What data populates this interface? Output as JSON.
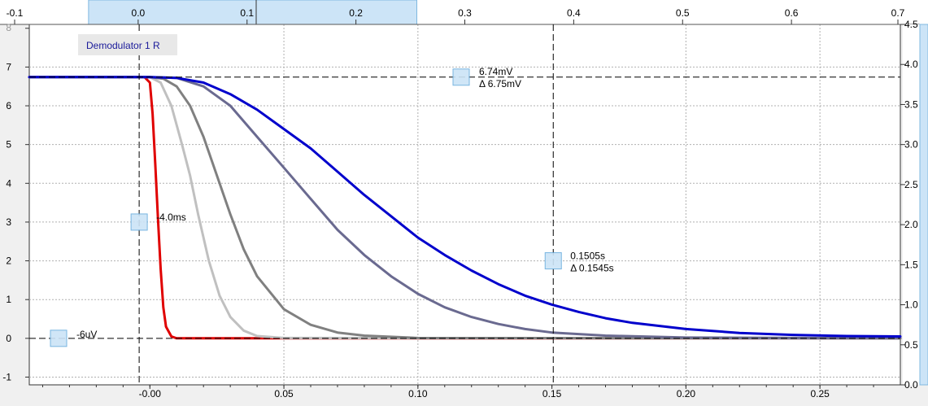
{
  "chart_data": {
    "type": "line",
    "title": "",
    "legend_label": "Demodulator 1 R",
    "top_axis": {
      "range": [
        -0.1,
        0.7
      ],
      "ticks": [
        "-0.1",
        "0.0",
        "0.1",
        "0.2",
        "0.3",
        "0.4",
        "0.5",
        "0.6",
        "0.7"
      ],
      "highlight_range": [
        0.0,
        0.3
      ]
    },
    "left_axis": {
      "range": [
        -1.2,
        8.1
      ],
      "ticks": [
        "-1",
        "0",
        "1",
        "2",
        "3",
        "4",
        "5",
        "6",
        "7",
        "8"
      ]
    },
    "right_axis": {
      "range": [
        0.0,
        4.5
      ],
      "ticks": [
        "0.0",
        "0.5",
        "1.0",
        "1.5",
        "2.0",
        "2.5",
        "3.0",
        "3.5",
        "4.0",
        "4.5"
      ]
    },
    "bottom_axis": {
      "range": [
        -0.045,
        0.28
      ],
      "ticks": [
        "-0.00",
        "0.05",
        "0.10",
        "0.15",
        "0.20",
        "0.25"
      ]
    },
    "grid": true,
    "series": [
      {
        "color": "#e00000",
        "x": [
          -0.045,
          -0.002,
          0.0,
          0.001,
          0.002,
          0.003,
          0.004,
          0.005,
          0.006,
          0.008,
          0.01,
          0.02,
          0.28
        ],
        "y": [
          6.74,
          6.74,
          6.6,
          5.8,
          4.5,
          3.1,
          1.8,
          0.8,
          0.3,
          0.05,
          0.0,
          0.0,
          0.0
        ]
      },
      {
        "color": "#c0c0c0",
        "x": [
          -0.045,
          0.0,
          0.004,
          0.008,
          0.012,
          0.015,
          0.018,
          0.022,
          0.026,
          0.03,
          0.035,
          0.04,
          0.05,
          0.28
        ],
        "y": [
          6.74,
          6.74,
          6.6,
          6.0,
          5.0,
          4.2,
          3.2,
          2.0,
          1.1,
          0.55,
          0.2,
          0.06,
          0.01,
          0.0
        ]
      },
      {
        "color": "#808080",
        "x": [
          -0.045,
          0.0,
          0.005,
          0.01,
          0.015,
          0.02,
          0.025,
          0.03,
          0.035,
          0.04,
          0.05,
          0.06,
          0.07,
          0.08,
          0.1,
          0.28
        ],
        "y": [
          6.74,
          6.74,
          6.7,
          6.5,
          6.0,
          5.2,
          4.2,
          3.2,
          2.3,
          1.6,
          0.75,
          0.35,
          0.15,
          0.07,
          0.01,
          0.0
        ]
      },
      {
        "color": "#6a6a90",
        "x": [
          -0.045,
          0.0,
          0.01,
          0.02,
          0.03,
          0.04,
          0.05,
          0.06,
          0.07,
          0.08,
          0.09,
          0.1,
          0.11,
          0.12,
          0.13,
          0.14,
          0.15,
          0.17,
          0.2,
          0.28
        ],
        "y": [
          6.74,
          6.74,
          6.72,
          6.5,
          6.0,
          5.2,
          4.4,
          3.6,
          2.8,
          2.15,
          1.6,
          1.15,
          0.8,
          0.55,
          0.37,
          0.24,
          0.15,
          0.07,
          0.02,
          0.0
        ]
      },
      {
        "color": "#0000cc",
        "x": [
          -0.045,
          0.0,
          0.01,
          0.02,
          0.03,
          0.04,
          0.05,
          0.06,
          0.07,
          0.08,
          0.09,
          0.1,
          0.11,
          0.12,
          0.13,
          0.14,
          0.15,
          0.16,
          0.17,
          0.18,
          0.2,
          0.22,
          0.24,
          0.26,
          0.28
        ],
        "y": [
          6.74,
          6.74,
          6.72,
          6.6,
          6.3,
          5.9,
          5.4,
          4.9,
          4.3,
          3.7,
          3.15,
          2.6,
          2.15,
          1.75,
          1.4,
          1.1,
          0.87,
          0.68,
          0.52,
          0.4,
          0.24,
          0.14,
          0.09,
          0.06,
          0.05
        ]
      }
    ],
    "cursors": [
      {
        "kind": "horizontal",
        "y": 6.74,
        "labels": [
          "6.74mV",
          "Δ 6.75mV"
        ]
      },
      {
        "kind": "horizontal",
        "y": 0.0,
        "labels": [
          "-6uV"
        ]
      },
      {
        "kind": "vertical",
        "x": -0.004,
        "labels": [
          "-4.0ms"
        ]
      },
      {
        "kind": "vertical",
        "x": 0.1505,
        "labels": [
          "0.1505s",
          "Δ 0.1545s"
        ]
      }
    ]
  }
}
